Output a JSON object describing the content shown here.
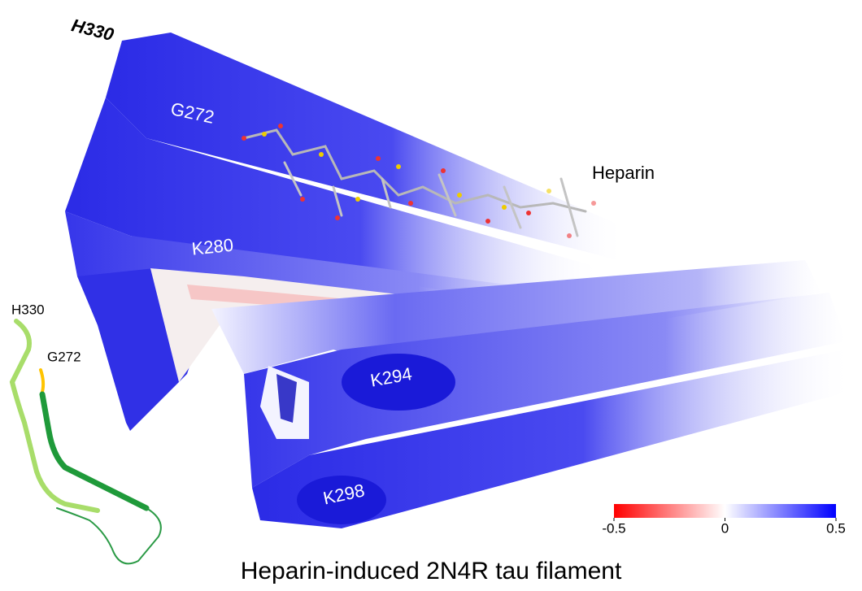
{
  "labels": {
    "top_end": "H330",
    "g272": "G272",
    "k280": "K280",
    "k294": "K294",
    "k298": "K298",
    "heparin": "Heparin"
  },
  "inset": {
    "h330": "H330",
    "g272": "G272"
  },
  "colorbar": {
    "ticks": [
      -0.5,
      0,
      0.5
    ]
  },
  "title": "Heparin-induced 2N4R tau filament"
}
